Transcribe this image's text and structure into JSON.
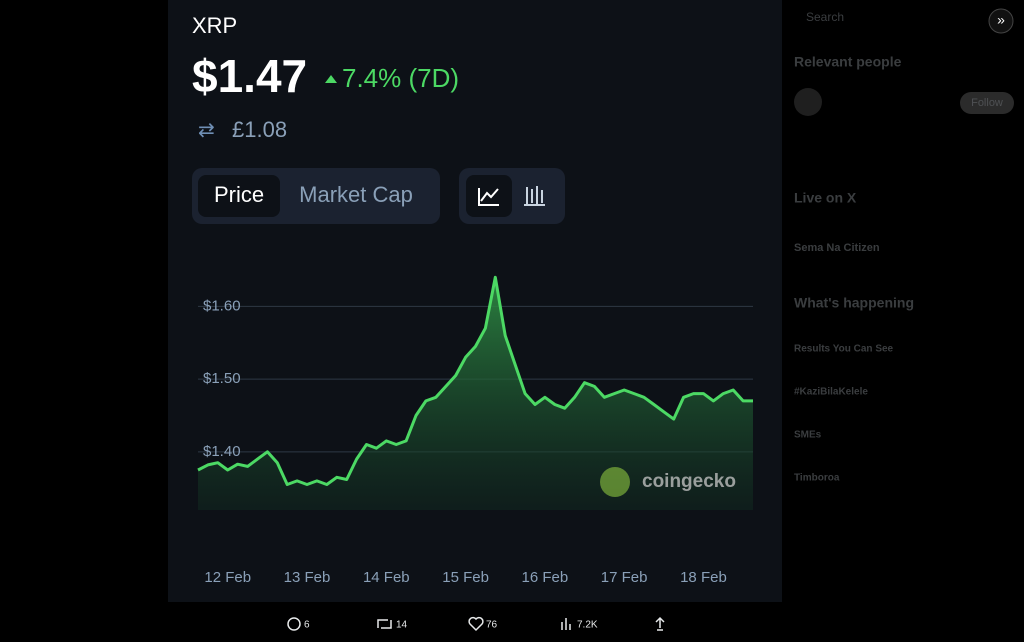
{
  "header": {
    "symbol": "XRP",
    "price": "$1.47",
    "change": "7.4% (7D)",
    "converted": "£1.08"
  },
  "tabs": [
    "Price",
    "Market Cap"
  ],
  "chart_data": {
    "type": "area",
    "categories": [
      null,
      null,
      null,
      "12 Feb",
      null,
      null,
      null,
      null,
      null,
      null,
      null,
      "13 Feb",
      null,
      null,
      null,
      null,
      null,
      null,
      null,
      "14 Feb",
      null,
      null,
      null,
      null,
      null,
      null,
      null,
      "15 Feb",
      null,
      null,
      null,
      null,
      null,
      null,
      null,
      "16 Feb",
      null,
      null,
      null,
      null,
      null,
      null,
      null,
      "17 Feb",
      null,
      null,
      null,
      null,
      null,
      null,
      null,
      "18 Feb",
      null,
      null,
      null,
      null,
      null
    ],
    "values": [
      1.375,
      1.382,
      1.385,
      1.375,
      1.383,
      1.38,
      1.39,
      1.4,
      1.385,
      1.355,
      1.36,
      1.355,
      1.36,
      1.355,
      1.365,
      1.362,
      1.39,
      1.41,
      1.405,
      1.415,
      1.41,
      1.415,
      1.45,
      1.47,
      1.475,
      1.49,
      1.505,
      1.53,
      1.545,
      1.57,
      1.64,
      1.56,
      1.52,
      1.48,
      1.465,
      1.475,
      1.465,
      1.46,
      1.475,
      1.495,
      1.49,
      1.475,
      1.48,
      1.485,
      1.48,
      1.475,
      1.465,
      1.455,
      1.445,
      1.475,
      1.48,
      1.48,
      1.47,
      1.48,
      1.485,
      1.47,
      1.47
    ],
    "color": "#4cd964",
    "ylim": [
      1.32,
      1.65
    ],
    "yticks": [
      {
        "value": 1.4,
        "label": "$1.40"
      },
      {
        "value": 1.5,
        "label": "$1.50"
      },
      {
        "value": 1.6,
        "label": "$1.60"
      }
    ],
    "grid": true
  },
  "watermark": "coingecko",
  "post_actions": {
    "replies": "6",
    "reposts": "14",
    "likes": "76",
    "views": "7.2K"
  },
  "sidebar": {
    "search": "Search",
    "relevant_people": "Relevant people",
    "follow": "Follow",
    "live": "Live on X",
    "live_item": "Sema Na Citizen",
    "happening": "What's happening",
    "trends": [
      "Results You Can See",
      "#KaziBilaKelele",
      "SMEs",
      "Timboroa"
    ]
  }
}
